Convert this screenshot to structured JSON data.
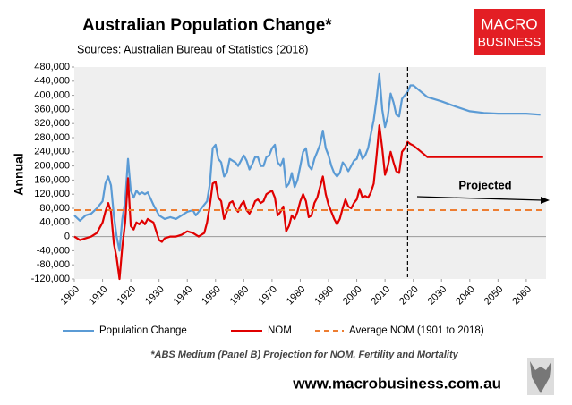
{
  "chart_data": {
    "type": "line",
    "title": "Australian Population Change*",
    "subtitle": "Sources: Australian Bureau of Statistics (2018)",
    "y_label": "Annual",
    "xlim": [
      1900,
      2067
    ],
    "xticks": [
      1900,
      1910,
      1920,
      1930,
      1940,
      1950,
      1960,
      1970,
      1980,
      1990,
      2000,
      2010,
      2020,
      2030,
      2040,
      2050,
      2060
    ],
    "ylim": [
      -120000,
      480000
    ],
    "yticks": [
      {
        "value": -120000,
        "label": "-120,000"
      },
      {
        "value": -80000,
        "label": "-80,000"
      },
      {
        "value": -40000,
        "label": "-40,000"
      },
      0,
      {
        "value": 40000,
        "label": "40,000"
      },
      {
        "value": 80000,
        "label": "80,000"
      },
      {
        "value": 120000,
        "label": "120,000"
      },
      {
        "value": 160000,
        "label": "160,000"
      },
      {
        "value": 200000,
        "label": "200,000"
      },
      {
        "value": 240000,
        "label": "240,000"
      },
      {
        "value": 280000,
        "label": "280,000"
      },
      {
        "value": 320000,
        "label": "320,000"
      },
      {
        "value": 360000,
        "label": "360,000"
      },
      {
        "value": 400000,
        "label": "400,000"
      },
      {
        "value": 440000,
        "label": "440,000"
      },
      {
        "value": 480000,
        "label": "480,000"
      }
    ],
    "projection_start": 2018,
    "annotation": "Projected",
    "footnote": "*ABS Medium (Panel B) Projection for NOM, Fertility and Mortality",
    "website": "www.macrobusiness.com.au",
    "logo": [
      "MACRO",
      "BUSINESS"
    ],
    "series": [
      {
        "name": "Population Change",
        "color": "#5b9bd5",
        "dash": false,
        "x": [
          1900,
          1902,
          1904,
          1906,
          1908,
          1910,
          1911,
          1912,
          1913,
          1914,
          1915,
          1916,
          1917,
          1918,
          1919,
          1920,
          1921,
          1922,
          1923,
          1924,
          1925,
          1926,
          1928,
          1930,
          1932,
          1934,
          1936,
          1938,
          1940,
          1942,
          1943,
          1945,
          1947,
          1948,
          1949,
          1950,
          1951,
          1952,
          1953,
          1954,
          1955,
          1956,
          1957,
          1958,
          1959,
          1960,
          1961,
          1962,
          1963,
          1964,
          1965,
          1966,
          1967,
          1968,
          1969,
          1970,
          1971,
          1972,
          1973,
          1974,
          1975,
          1976,
          1977,
          1978,
          1979,
          1980,
          1981,
          1982,
          1983,
          1984,
          1985,
          1986,
          1987,
          1988,
          1989,
          1990,
          1991,
          1992,
          1993,
          1994,
          1995,
          1996,
          1997,
          1998,
          1999,
          2000,
          2001,
          2002,
          2003,
          2004,
          2005,
          2006,
          2007,
          2008,
          2009,
          2010,
          2011,
          2012,
          2013,
          2014,
          2015,
          2016,
          2017,
          2018,
          2019,
          2020,
          2022,
          2025,
          2030,
          2035,
          2040,
          2045,
          2050,
          2055,
          2060,
          2065
        ],
        "values": [
          60000,
          45000,
          60000,
          65000,
          80000,
          100000,
          150000,
          170000,
          145000,
          60000,
          0,
          -40000,
          50000,
          100000,
          220000,
          130000,
          110000,
          130000,
          120000,
          125000,
          120000,
          125000,
          90000,
          60000,
          50000,
          55000,
          50000,
          60000,
          70000,
          75000,
          60000,
          80000,
          100000,
          150000,
          250000,
          260000,
          220000,
          210000,
          170000,
          180000,
          220000,
          215000,
          210000,
          200000,
          215000,
          230000,
          215000,
          190000,
          205000,
          225000,
          225000,
          200000,
          200000,
          225000,
          230000,
          250000,
          260000,
          210000,
          200000,
          220000,
          140000,
          150000,
          180000,
          140000,
          160000,
          200000,
          240000,
          250000,
          200000,
          190000,
          220000,
          240000,
          260000,
          300000,
          250000,
          230000,
          200000,
          180000,
          170000,
          180000,
          210000,
          200000,
          185000,
          200000,
          215000,
          220000,
          245000,
          220000,
          230000,
          250000,
          290000,
          330000,
          390000,
          460000,
          360000,
          310000,
          340000,
          405000,
          380000,
          345000,
          340000,
          390000,
          400000,
          410000,
          428000,
          428000,
          415000,
          395000,
          383000,
          368000,
          355000,
          350000,
          348000,
          348000,
          348000,
          345000
        ]
      },
      {
        "name": "NOM",
        "color": "#e00000",
        "dash": false,
        "x": [
          1900,
          1902,
          1904,
          1906,
          1908,
          1910,
          1911,
          1912,
          1913,
          1914,
          1915,
          1916,
          1917,
          1918,
          1919,
          1920,
          1921,
          1922,
          1923,
          1924,
          1925,
          1926,
          1928,
          1930,
          1931,
          1932,
          1934,
          1936,
          1938,
          1940,
          1942,
          1944,
          1946,
          1947,
          1948,
          1949,
          1950,
          1951,
          1952,
          1953,
          1954,
          1955,
          1956,
          1957,
          1958,
          1959,
          1960,
          1961,
          1962,
          1963,
          1964,
          1965,
          1966,
          1967,
          1968,
          1969,
          1970,
          1971,
          1972,
          1973,
          1974,
          1975,
          1976,
          1977,
          1978,
          1979,
          1980,
          1981,
          1982,
          1983,
          1984,
          1985,
          1986,
          1987,
          1988,
          1989,
          1990,
          1991,
          1992,
          1993,
          1994,
          1995,
          1996,
          1997,
          1998,
          1999,
          2000,
          2001,
          2002,
          2003,
          2004,
          2005,
          2006,
          2007,
          2008,
          2009,
          2010,
          2011,
          2012,
          2013,
          2014,
          2015,
          2016,
          2017,
          2018,
          2019,
          2020,
          2022,
          2025,
          2030,
          2040,
          2050,
          2060,
          2066
        ],
        "values": [
          0,
          -10000,
          -5000,
          0,
          10000,
          40000,
          70000,
          95000,
          70000,
          -20000,
          -60000,
          -120000,
          -30000,
          40000,
          165000,
          30000,
          20000,
          40000,
          35000,
          45000,
          35000,
          50000,
          40000,
          -10000,
          -15000,
          -5000,
          0,
          0,
          5000,
          15000,
          10000,
          0,
          10000,
          40000,
          90000,
          150000,
          155000,
          110000,
          100000,
          50000,
          70000,
          95000,
          100000,
          80000,
          70000,
          90000,
          100000,
          75000,
          65000,
          80000,
          100000,
          105000,
          95000,
          100000,
          120000,
          125000,
          130000,
          110000,
          60000,
          70000,
          85000,
          15000,
          30000,
          60000,
          50000,
          70000,
          100000,
          120000,
          100000,
          55000,
          60000,
          95000,
          110000,
          140000,
          170000,
          120000,
          90000,
          70000,
          50000,
          35000,
          50000,
          80000,
          105000,
          85000,
          80000,
          95000,
          105000,
          135000,
          110000,
          115000,
          110000,
          125000,
          150000,
          230000,
          315000,
          250000,
          175000,
          200000,
          240000,
          210000,
          185000,
          180000,
          240000,
          250000,
          268000,
          262000,
          258000,
          245000,
          225000,
          225000,
          225000,
          225000,
          225000,
          225000
        ]
      },
      {
        "name": "Average NOM (1901 to 2018)",
        "color": "#ed7d31",
        "dash": true,
        "x": [
          1900,
          2067
        ],
        "values": [
          75000,
          75000
        ]
      }
    ]
  }
}
